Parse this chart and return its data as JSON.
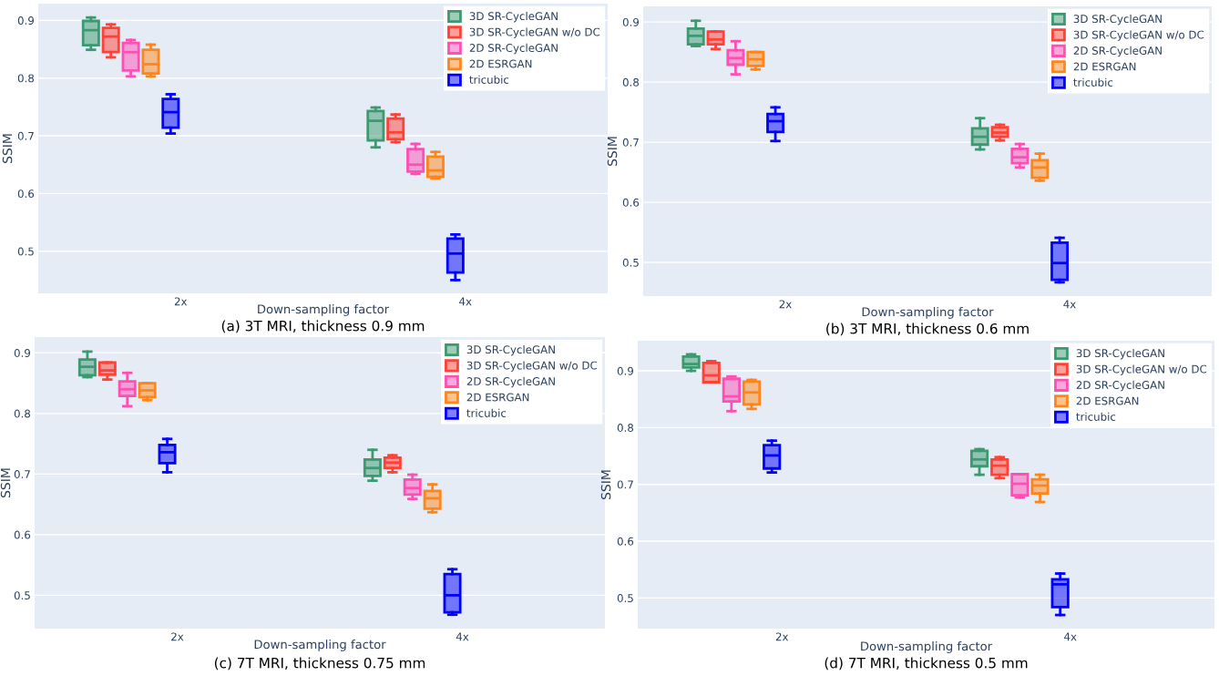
{
  "chart_data": [
    {
      "type": "box",
      "title": "(a) 3T MRI, thickness 0.9 mm",
      "xlabel": "Down-sampling factor",
      "ylabel": "SSIM",
      "categories": [
        "2x",
        "4x"
      ],
      "ylim": [
        0.427,
        0.929
      ],
      "yticks": [
        0.5,
        0.6,
        0.7,
        0.8,
        0.9
      ],
      "grid": "y",
      "legend": "top right",
      "series": [
        {
          "name": "3D SR-CycleGAN",
          "color": "#3d9970",
          "boxes": [
            {
              "low": 0.849,
              "q1": 0.857,
              "median": 0.883,
              "q3": 0.899,
              "high": 0.905
            },
            {
              "low": 0.68,
              "q1": 0.692,
              "median": 0.726,
              "q3": 0.743,
              "high": 0.749
            }
          ]
        },
        {
          "name": "3D SR-CycleGAN w/o DC",
          "color": "#ff4136",
          "boxes": [
            {
              "low": 0.836,
              "q1": 0.845,
              "median": 0.872,
              "q3": 0.887,
              "high": 0.893
            },
            {
              "low": 0.689,
              "q1": 0.694,
              "median": 0.706,
              "q3": 0.73,
              "high": 0.737
            }
          ]
        },
        {
          "name": "2D SR-CycleGAN",
          "color": "#ff4fb5",
          "boxes": [
            {
              "low": 0.803,
              "q1": 0.813,
              "median": 0.845,
              "q3": 0.861,
              "high": 0.866
            },
            {
              "low": 0.634,
              "q1": 0.638,
              "median": 0.65,
              "q3": 0.677,
              "high": 0.686
            }
          ]
        },
        {
          "name": "2D ESRGAN",
          "color": "#ff851b",
          "boxes": [
            {
              "low": 0.803,
              "q1": 0.808,
              "median": 0.824,
              "q3": 0.849,
              "high": 0.858
            },
            {
              "low": 0.626,
              "q1": 0.629,
              "median": 0.64,
              "q3": 0.664,
              "high": 0.672
            }
          ]
        },
        {
          "name": "tricubic",
          "color": "#0000ff",
          "boxes": [
            {
              "low": 0.704,
              "q1": 0.714,
              "median": 0.741,
              "q3": 0.764,
              "high": 0.772
            },
            {
              "low": 0.45,
              "q1": 0.463,
              "median": 0.496,
              "q3": 0.522,
              "high": 0.529
            }
          ]
        }
      ]
    },
    {
      "type": "box",
      "title": "(b) 3T MRI, thickness 0.6 mm",
      "xlabel": "Down-sampling factor",
      "ylabel": "SSIM",
      "categories": [
        "2x",
        "4x"
      ],
      "ylim": [
        0.444,
        0.926
      ],
      "yticks": [
        0.5,
        0.6,
        0.7,
        0.8,
        0.9
      ],
      "grid": "y",
      "legend": "top right",
      "series": [
        {
          "name": "3D SR-CycleGAN",
          "color": "#3d9970",
          "boxes": [
            {
              "low": 0.86,
              "q1": 0.863,
              "median": 0.877,
              "q3": 0.889,
              "high": 0.902
            },
            {
              "low": 0.688,
              "q1": 0.696,
              "median": 0.709,
              "q3": 0.723,
              "high": 0.74
            }
          ]
        },
        {
          "name": "3D SR-CycleGAN w/o DC",
          "color": "#ff4136",
          "boxes": [
            {
              "low": 0.855,
              "q1": 0.863,
              "median": 0.871,
              "q3": 0.884,
              "high": 0.884
            },
            {
              "low": 0.703,
              "q1": 0.709,
              "median": 0.716,
              "q3": 0.725,
              "high": 0.729
            }
          ]
        },
        {
          "name": "2D SR-CycleGAN",
          "color": "#ff4fb5",
          "boxes": [
            {
              "low": 0.813,
              "q1": 0.829,
              "median": 0.84,
              "q3": 0.853,
              "high": 0.868
            },
            {
              "low": 0.658,
              "q1": 0.665,
              "median": 0.675,
              "q3": 0.689,
              "high": 0.697
            }
          ]
        },
        {
          "name": "2D ESRGAN",
          "color": "#ff851b",
          "boxes": [
            {
              "low": 0.821,
              "q1": 0.827,
              "median": 0.838,
              "q3": 0.85,
              "high": 0.85
            },
            {
              "low": 0.636,
              "q1": 0.641,
              "median": 0.658,
              "q3": 0.67,
              "high": 0.681
            }
          ]
        },
        {
          "name": "tricubic",
          "color": "#0000ff",
          "boxes": [
            {
              "low": 0.702,
              "q1": 0.717,
              "median": 0.735,
              "q3": 0.747,
              "high": 0.758
            },
            {
              "low": 0.467,
              "q1": 0.471,
              "median": 0.499,
              "q3": 0.533,
              "high": 0.541
            }
          ]
        }
      ]
    },
    {
      "type": "box",
      "title": "(c) 7T MRI, thickness 0.75 mm",
      "xlabel": "Down-sampling factor",
      "ylabel": "SSIM",
      "categories": [
        "2x",
        "4x"
      ],
      "ylim": [
        0.445,
        0.926
      ],
      "yticks": [
        0.5,
        0.6,
        0.7,
        0.8,
        0.9
      ],
      "grid": "y",
      "legend": "top right",
      "series": [
        {
          "name": "3D SR-CycleGAN",
          "color": "#3d9970",
          "boxes": [
            {
              "low": 0.86,
              "q1": 0.863,
              "median": 0.877,
              "q3": 0.889,
              "high": 0.902
            },
            {
              "low": 0.689,
              "q1": 0.697,
              "median": 0.71,
              "q3": 0.724,
              "high": 0.74
            }
          ]
        },
        {
          "name": "3D SR-CycleGAN w/o DC",
          "color": "#ff4136",
          "boxes": [
            {
              "low": 0.856,
              "q1": 0.864,
              "median": 0.871,
              "q3": 0.884,
              "high": 0.884
            },
            {
              "low": 0.703,
              "q1": 0.71,
              "median": 0.719,
              "q3": 0.727,
              "high": 0.731
            }
          ]
        },
        {
          "name": "2D SR-CycleGAN",
          "color": "#ff4fb5",
          "boxes": [
            {
              "low": 0.812,
              "q1": 0.829,
              "median": 0.84,
              "q3": 0.853,
              "high": 0.867
            },
            {
              "low": 0.659,
              "q1": 0.666,
              "median": 0.677,
              "q3": 0.691,
              "high": 0.699
            }
          ]
        },
        {
          "name": "2D ESRGAN",
          "color": "#ff851b",
          "boxes": [
            {
              "low": 0.822,
              "q1": 0.827,
              "median": 0.838,
              "q3": 0.85,
              "high": 0.85
            },
            {
              "low": 0.637,
              "q1": 0.643,
              "median": 0.66,
              "q3": 0.672,
              "high": 0.683
            }
          ]
        },
        {
          "name": "tricubic",
          "color": "#0000ff",
          "boxes": [
            {
              "low": 0.703,
              "q1": 0.718,
              "median": 0.736,
              "q3": 0.748,
              "high": 0.758
            },
            {
              "low": 0.468,
              "q1": 0.472,
              "median": 0.5,
              "q3": 0.535,
              "high": 0.543
            }
          ]
        }
      ]
    },
    {
      "type": "box",
      "title": "(d) 7T MRI, thickness 0.5 mm",
      "xlabel": "Down-sampling factor",
      "ylabel": "SSIM",
      "categories": [
        "2x",
        "4x"
      ],
      "ylim": [
        0.446,
        0.953
      ],
      "yticks": [
        0.5,
        0.6,
        0.7,
        0.8,
        0.9
      ],
      "grid": "y",
      "legend": "top right",
      "series": [
        {
          "name": "3D SR-CycleGAN",
          "color": "#3d9970",
          "boxes": [
            {
              "low": 0.9,
              "q1": 0.906,
              "median": 0.912,
              "q3": 0.925,
              "high": 0.929
            },
            {
              "low": 0.717,
              "q1": 0.732,
              "median": 0.744,
              "q3": 0.759,
              "high": 0.762
            }
          ]
        },
        {
          "name": "3D SR-CycleGAN w/o DC",
          "color": "#ff4136",
          "boxes": [
            {
              "low": 0.88,
              "q1": 0.88,
              "median": 0.892,
              "q3": 0.914,
              "high": 0.917
            },
            {
              "low": 0.711,
              "q1": 0.717,
              "median": 0.733,
              "q3": 0.744,
              "high": 0.748
            }
          ]
        },
        {
          "name": "2D SR-CycleGAN",
          "color": "#ff4fb5",
          "boxes": [
            {
              "low": 0.829,
              "q1": 0.846,
              "median": 0.855,
              "q3": 0.886,
              "high": 0.89
            },
            {
              "low": 0.677,
              "q1": 0.681,
              "median": 0.701,
              "q3": 0.718,
              "high": 0.718
            }
          ]
        },
        {
          "name": "2D ESRGAN",
          "color": "#ff851b",
          "boxes": [
            {
              "low": 0.833,
              "q1": 0.841,
              "median": 0.862,
              "q3": 0.881,
              "high": 0.884
            },
            {
              "low": 0.669,
              "q1": 0.684,
              "median": 0.698,
              "q3": 0.709,
              "high": 0.717
            }
          ]
        },
        {
          "name": "tricubic",
          "color": "#0000ff",
          "boxes": [
            {
              "low": 0.721,
              "q1": 0.728,
              "median": 0.751,
              "q3": 0.769,
              "high": 0.777
            },
            {
              "low": 0.47,
              "q1": 0.484,
              "median": 0.524,
              "q3": 0.533,
              "high": 0.543
            }
          ]
        }
      ]
    }
  ]
}
